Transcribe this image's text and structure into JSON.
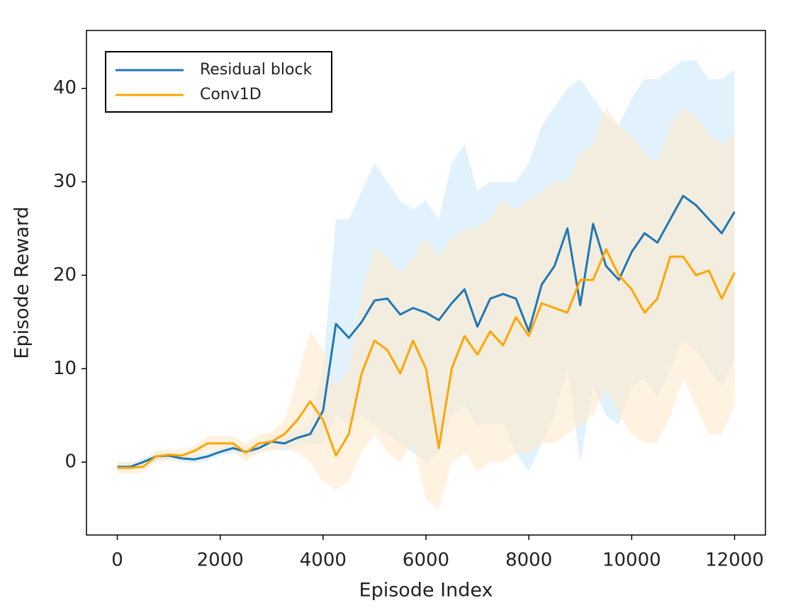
{
  "chart_data": {
    "type": "line",
    "xlabel": "Episode Index",
    "ylabel": "Episode Reward",
    "x": [
      0,
      250,
      500,
      750,
      1000,
      1250,
      1500,
      1750,
      2000,
      2250,
      2500,
      2750,
      3000,
      3250,
      3500,
      3750,
      4000,
      4250,
      4500,
      4750,
      5000,
      5250,
      5500,
      5750,
      6000,
      6250,
      6500,
      6750,
      7000,
      7250,
      7500,
      7750,
      8000,
      8250,
      8500,
      8750,
      9000,
      9250,
      9500,
      9750,
      10000,
      10250,
      10500,
      10750,
      11000,
      11250,
      11500,
      11750,
      12000
    ],
    "series": [
      {
        "name": "Residual block",
        "color": "#1f77b4",
        "band_color": "#cde9fa",
        "values": [
          -0.5,
          -0.5,
          0.0,
          0.6,
          0.7,
          0.4,
          0.3,
          0.6,
          1.1,
          1.5,
          1.1,
          1.5,
          2.2,
          2.0,
          2.6,
          3.0,
          5.5,
          14.8,
          13.3,
          15.0,
          17.3,
          17.5,
          15.8,
          16.5,
          16.0,
          15.2,
          17.0,
          18.5,
          14.5,
          17.5,
          18.0,
          17.5,
          14.0,
          19.0,
          21.0,
          25.0,
          16.8,
          25.5,
          21.0,
          19.5,
          22.5,
          24.5,
          23.5,
          26.0,
          28.5,
          27.5,
          26.0,
          24.5,
          26.8
        ],
        "lower": [
          -0.9,
          -0.9,
          -0.4,
          0.2,
          0.3,
          0.0,
          -0.1,
          0.2,
          0.7,
          1.0,
          0.6,
          1.0,
          1.5,
          1.2,
          1.8,
          2.0,
          2,
          5,
          4,
          5,
          4,
          3,
          2,
          1,
          0,
          1,
          5,
          6,
          4,
          4,
          4,
          1,
          -1,
          2,
          5,
          10,
          0,
          8,
          5,
          4,
          8,
          9,
          7,
          10,
          13,
          12,
          10,
          8,
          11
        ],
        "upper": [
          -0.1,
          -0.1,
          0.4,
          1.0,
          1.1,
          0.8,
          0.7,
          1.0,
          1.5,
          2.0,
          1.6,
          2.0,
          2.9,
          2.8,
          3.4,
          4.0,
          10,
          26,
          26,
          29,
          32,
          30,
          28,
          27,
          28,
          26,
          32,
          34,
          29,
          30,
          30,
          30,
          32,
          36,
          38,
          40,
          41,
          39,
          37,
          36,
          39,
          41,
          41,
          42,
          43,
          43,
          41,
          41,
          42
        ]
      },
      {
        "name": "Conv1D",
        "color": "#ffa500",
        "band_color": "#ffe9cc",
        "values": [
          -0.6,
          -0.6,
          -0.5,
          0.6,
          0.8,
          0.7,
          1.2,
          2.0,
          2.0,
          2.0,
          1.0,
          2.0,
          2.2,
          3.0,
          4.5,
          6.5,
          4.5,
          0.7,
          3.0,
          9.5,
          13.0,
          12.0,
          9.5,
          13.0,
          10.0,
          1.5,
          10.0,
          13.5,
          11.5,
          14.0,
          12.5,
          15.5,
          13.5,
          17.0,
          16.5,
          16.0,
          19.5,
          19.5,
          22.8,
          20.0,
          18.5,
          16.0,
          17.5,
          22.0,
          22.0,
          20.0,
          20.5,
          17.5,
          20.3
        ],
        "lower": [
          -1.2,
          -1.2,
          -1.1,
          0.0,
          0.2,
          0.1,
          0.6,
          1.2,
          1.2,
          1.2,
          0.0,
          1.0,
          1.2,
          1.5,
          1,
          0,
          -2,
          -3,
          -2,
          1,
          3,
          1,
          0,
          2,
          -4,
          -5,
          0,
          1,
          -1,
          0,
          0,
          1,
          1,
          2,
          2,
          3,
          4,
          5,
          8,
          5,
          3,
          2,
          2,
          5,
          9,
          6,
          3,
          3,
          6
        ],
        "upper": [
          0.0,
          0.0,
          0.1,
          1.2,
          1.4,
          1.3,
          1.8,
          2.8,
          2.8,
          2.8,
          2.0,
          3.0,
          3.2,
          4.5,
          9,
          14,
          12,
          8,
          10,
          18,
          23,
          22,
          20,
          22,
          24,
          22,
          24,
          25,
          25,
          26,
          28,
          27,
          28,
          29,
          30,
          30,
          33,
          34,
          38,
          36,
          35,
          33,
          32,
          36,
          38,
          37,
          35,
          34,
          35
        ]
      }
    ],
    "xlim": [
      -600,
      12600
    ],
    "ylim": [
      -7.8,
      46.2
    ],
    "xticks": [
      0,
      2000,
      4000,
      6000,
      8000,
      10000,
      12000
    ],
    "yticks": [
      0,
      10,
      20,
      30,
      40
    ],
    "legend": "upper left",
    "grid": false
  }
}
